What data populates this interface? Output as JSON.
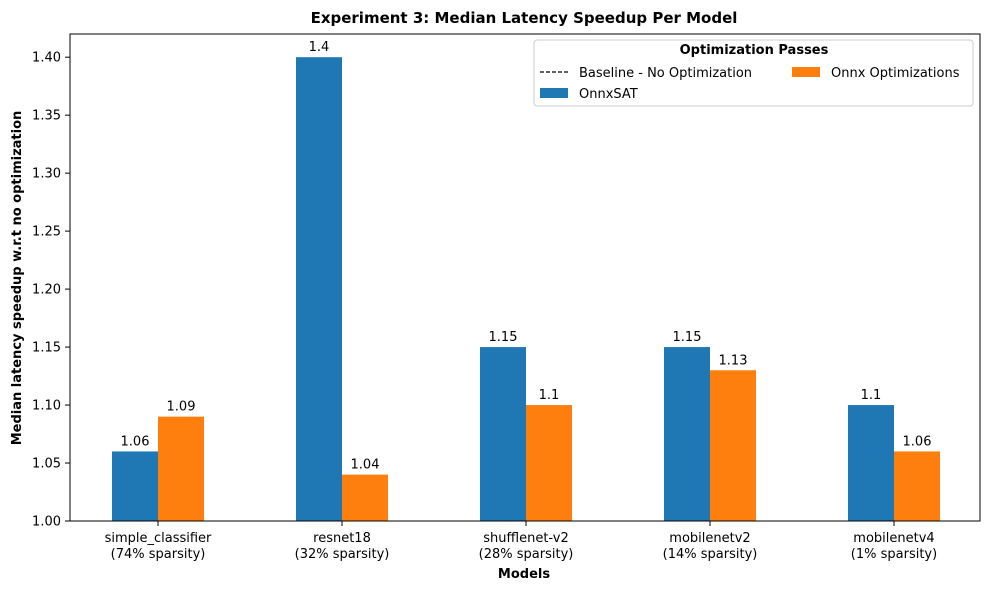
{
  "chart_data": {
    "type": "bar",
    "title": "Experiment 3: Median Latency Speedup Per Model",
    "xlabel": "Models",
    "ylabel": "Median latency speedup w.r.t no optimization",
    "categories": [
      [
        "simple_classifier",
        "(74% sparsity)"
      ],
      [
        "resnet18",
        "(32% sparsity)"
      ],
      [
        "shufflenet-v2",
        "(28% sparsity)"
      ],
      [
        "mobilenetv2",
        "(14% sparsity)"
      ],
      [
        "mobilenetv4",
        "(1% sparsity)"
      ]
    ],
    "series": [
      {
        "name": "OnnxSAT",
        "color": "#1f77b4",
        "values": [
          1.06,
          1.4,
          1.15,
          1.15,
          1.1
        ],
        "labels": [
          "1.06",
          "1.4",
          "1.15",
          "1.15",
          "1.1"
        ]
      },
      {
        "name": "Onnx Optimizations",
        "color": "#ff7f0e",
        "values": [
          1.09,
          1.04,
          1.1,
          1.13,
          1.06
        ],
        "labels": [
          "1.09",
          "1.04",
          "1.1",
          "1.13",
          "1.06"
        ]
      }
    ],
    "baseline": {
      "name": "Baseline - No Optimization",
      "value": 1.0,
      "style": "dashed"
    },
    "ylim": [
      1.0,
      1.42
    ],
    "yticks": [
      "1.00",
      "1.05",
      "1.10",
      "1.15",
      "1.20",
      "1.25",
      "1.30",
      "1.35",
      "1.40"
    ],
    "legend": {
      "title": "Optimization Passes",
      "placement": "top-right"
    },
    "grid": false
  }
}
